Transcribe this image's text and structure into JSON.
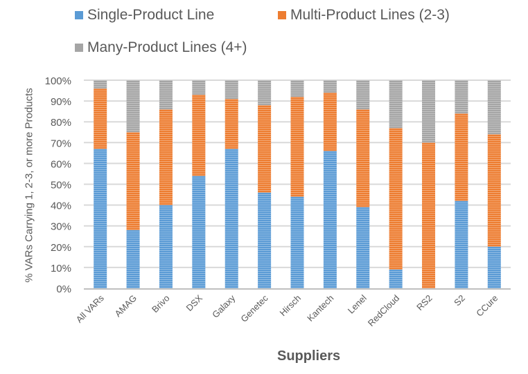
{
  "chart_data": {
    "type": "bar",
    "stacked": true,
    "percent": true,
    "title": "",
    "xlabel": "Suppliers",
    "ylabel": "% VARs Carrying 1, 2-3, or more Products",
    "ylim": [
      0,
      100
    ],
    "yticks": [
      "0%",
      "10%",
      "20%",
      "30%",
      "40%",
      "50%",
      "60%",
      "70%",
      "80%",
      "90%",
      "100%"
    ],
    "grid": true,
    "legend_position": "top",
    "categories": [
      "All VARs",
      "AMAG",
      "Brivo",
      "DSX",
      "Galaxy",
      "Genetec",
      "Hirsch",
      "Kantech",
      "Lenel",
      "RedCloud",
      "RS2",
      "S2",
      "CCure"
    ],
    "series": [
      {
        "name": "Single-Product Line",
        "color": "#5b9bd5",
        "values": [
          67,
          28,
          40,
          54,
          67,
          46,
          44,
          66,
          39,
          9,
          0,
          42,
          20
        ]
      },
      {
        "name": "Multi-Product Lines (2-3)",
        "color": "#ed7d31",
        "values": [
          29,
          47,
          46,
          39,
          24,
          42,
          48,
          28,
          47,
          68,
          70,
          42,
          54
        ]
      },
      {
        "name": "Many-Product Lines (4+)",
        "color": "#a5a5a5",
        "values": [
          4,
          25,
          14,
          7,
          9,
          12,
          8,
          6,
          14,
          23,
          30,
          16,
          26
        ]
      }
    ]
  },
  "legend": {
    "items": [
      {
        "label": "Single-Product Line",
        "color": "#5b9bd5"
      },
      {
        "label": "Multi-Product Lines (2-3)",
        "color": "#ed7d31"
      },
      {
        "label": "Many-Product Lines (4+)",
        "color": "#a5a5a5"
      }
    ]
  },
  "axes": {
    "x_title": "Suppliers",
    "y_title": "% VARs Carrying 1, 2-3, or more Products"
  }
}
